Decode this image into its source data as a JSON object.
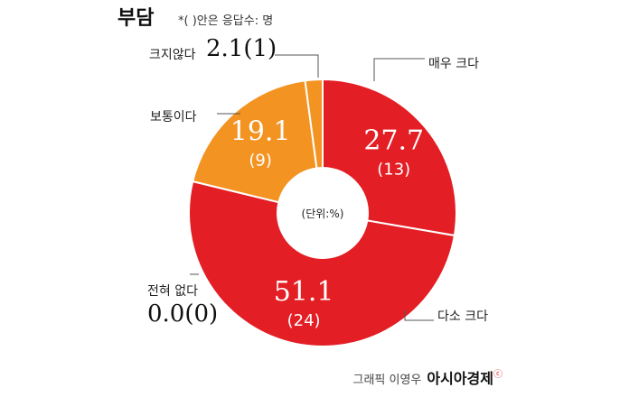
{
  "title": "부담",
  "note": "*(  )안은 응답수: 명",
  "center_label": "(단위:%)",
  "credit": {
    "author": "그래픽 이영우",
    "brand": "아시아경제",
    "brand_mark": "ⓒ"
  },
  "colors": {
    "very": "#e31e24",
    "somewhat": "#e31e24",
    "none": "#e31e24",
    "normal": "#f39322",
    "little": "#f39322",
    "separator": "#ffffff"
  },
  "chart_data": {
    "type": "pie",
    "donut": true,
    "start": "top",
    "direction": "clockwise",
    "slices": [
      {
        "label": "매우 크다",
        "value": 27.7,
        "count": "(13)",
        "value_text": "27.7",
        "color": "#e31e24"
      },
      {
        "label": "다소 크다",
        "value": 51.1,
        "count": "(24)",
        "value_text": "51.1",
        "color": "#e31e24"
      },
      {
        "label": "전혀 없다",
        "value": 0.0,
        "count": "(0)",
        "value_text": "0.0",
        "color": "#e31e24"
      },
      {
        "label": "보통이다",
        "value": 19.1,
        "count": "(9)",
        "value_text": "19.1",
        "color": "#f39322"
      },
      {
        "label": "크지않다",
        "value": 2.1,
        "count": "(1)",
        "value_text": "2.1",
        "color": "#f39322"
      }
    ]
  },
  "external": {
    "little": {
      "label": "크지않다",
      "value": "2.1(1)"
    },
    "none": {
      "label": "전혀 없다",
      "value": "0.0(0)"
    }
  }
}
